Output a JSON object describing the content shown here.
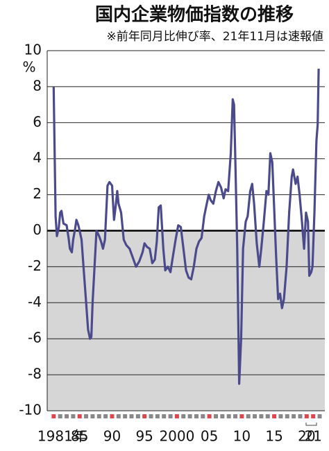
{
  "chart_data": {
    "type": "line",
    "title": "国内企業物価指数の推移",
    "subtitle": "※前年同月比伸び率、21年11月は速報値",
    "y_unit": "%",
    "x": [
      1981.0,
      1981.3,
      1981.5,
      1981.8,
      1982.0,
      1982.2,
      1982.5,
      1983.0,
      1983.3,
      1983.5,
      1983.8,
      1984.0,
      1984.3,
      1984.5,
      1984.8,
      1985.0,
      1985.3,
      1985.6,
      1986.0,
      1986.3,
      1986.6,
      1986.8,
      1987.0,
      1987.3,
      1987.6,
      1988.0,
      1988.3,
      1988.6,
      1988.9,
      1989.3,
      1989.6,
      1990.0,
      1990.3,
      1990.6,
      1990.8,
      1991.0,
      1991.4,
      1991.8,
      1992.2,
      1992.7,
      1993.2,
      1993.7,
      1994.2,
      1994.7,
      1995.0,
      1995.4,
      1995.8,
      1996.2,
      1996.6,
      1996.9,
      1997.2,
      1997.5,
      1997.9,
      1998.2,
      1998.6,
      1999.0,
      1999.3,
      1999.8,
      2000.2,
      2000.6,
      2001.0,
      2001.4,
      2001.8,
      2002.2,
      2002.6,
      2003.0,
      2003.4,
      2003.8,
      2004.2,
      2004.6,
      2004.9,
      2005.2,
      2005.6,
      2006.0,
      2006.4,
      2006.8,
      2007.2,
      2007.5,
      2007.9,
      2008.3,
      2008.6,
      2008.8,
      2009.0,
      2009.3,
      2009.6,
      2009.9,
      2010.2,
      2010.6,
      2010.9,
      2011.3,
      2011.6,
      2011.9,
      2012.3,
      2012.7,
      2013.0,
      2013.4,
      2013.8,
      2014.1,
      2014.4,
      2014.7,
      2014.9,
      2015.3,
      2015.6,
      2015.9,
      2016.2,
      2016.5,
      2016.9,
      2017.3,
      2017.7,
      2017.9,
      2018.3,
      2018.6,
      2018.9,
      2019.2,
      2019.6,
      2019.9,
      2020.2,
      2020.4,
      2020.7,
      2020.9,
      2021.2,
      2021.5,
      2021.7,
      2021.85
    ],
    "series": [
      {
        "color": "#4b4a8c",
        "values": [
          8.0,
          0.8,
          -0.3,
          0.2,
          1.0,
          1.1,
          0.4,
          0.3,
          -0.4,
          -1.0,
          -1.2,
          -0.5,
          0.1,
          0.6,
          0.3,
          0.0,
          -0.5,
          -2.0,
          -4.0,
          -5.5,
          -6.0,
          -5.9,
          -4.0,
          -2.0,
          0.0,
          -0.3,
          -0.6,
          -1.0,
          -0.5,
          2.5,
          2.7,
          2.5,
          0.6,
          1.5,
          2.2,
          1.5,
          1.0,
          -0.5,
          -0.8,
          -1.0,
          -1.5,
          -2.0,
          -1.7,
          -1.2,
          -0.7,
          -0.9,
          -1.0,
          -1.8,
          -1.6,
          -0.6,
          1.3,
          1.4,
          -1.0,
          -2.2,
          -2.0,
          -2.3,
          -1.6,
          -0.5,
          0.3,
          0.2,
          -1.0,
          -2.2,
          -2.6,
          -2.7,
          -2.0,
          -1.0,
          -0.6,
          -0.4,
          0.8,
          1.5,
          2.0,
          1.7,
          1.5,
          2.2,
          2.7,
          2.4,
          1.8,
          2.3,
          2.2,
          4.3,
          7.3,
          7.0,
          4.0,
          -1.0,
          -8.5,
          -6.0,
          -1.0,
          0.5,
          0.8,
          2.2,
          2.6,
          1.5,
          -0.7,
          -2.0,
          -1.0,
          0.5,
          2.2,
          2.0,
          4.3,
          3.8,
          2.0,
          -1.5,
          -3.8,
          -3.5,
          -4.3,
          -3.8,
          -2.0,
          1.0,
          3.0,
          3.4,
          2.6,
          3.0,
          2.0,
          0.8,
          -1.0,
          1.0,
          0.5,
          -2.5,
          -2.3,
          -2.0,
          1.0,
          5.0,
          5.9,
          9.0
        ]
      }
    ],
    "xlim": [
      1980,
      2022.8
    ],
    "xticks": [
      {
        "value": 1981,
        "label": "1981年"
      },
      {
        "value": 1985,
        "label": "85"
      },
      {
        "value": 1990,
        "label": "90"
      },
      {
        "value": 1995,
        "label": "95"
      },
      2000,
      {
        "value": 2005,
        "label": "05"
      },
      {
        "value": 2010,
        "label": "10"
      },
      {
        "value": 2015,
        "label": "15"
      },
      {
        "value": 2020,
        "label": "20"
      },
      {
        "value": 2021,
        "label": "21"
      }
    ],
    "ylim": [
      -10,
      10
    ],
    "yticks": [
      -10,
      -8,
      -6,
      -4,
      -2,
      0,
      2,
      4,
      6,
      8,
      10
    ],
    "grid": true,
    "negative_fill": "#d6d6d6"
  }
}
